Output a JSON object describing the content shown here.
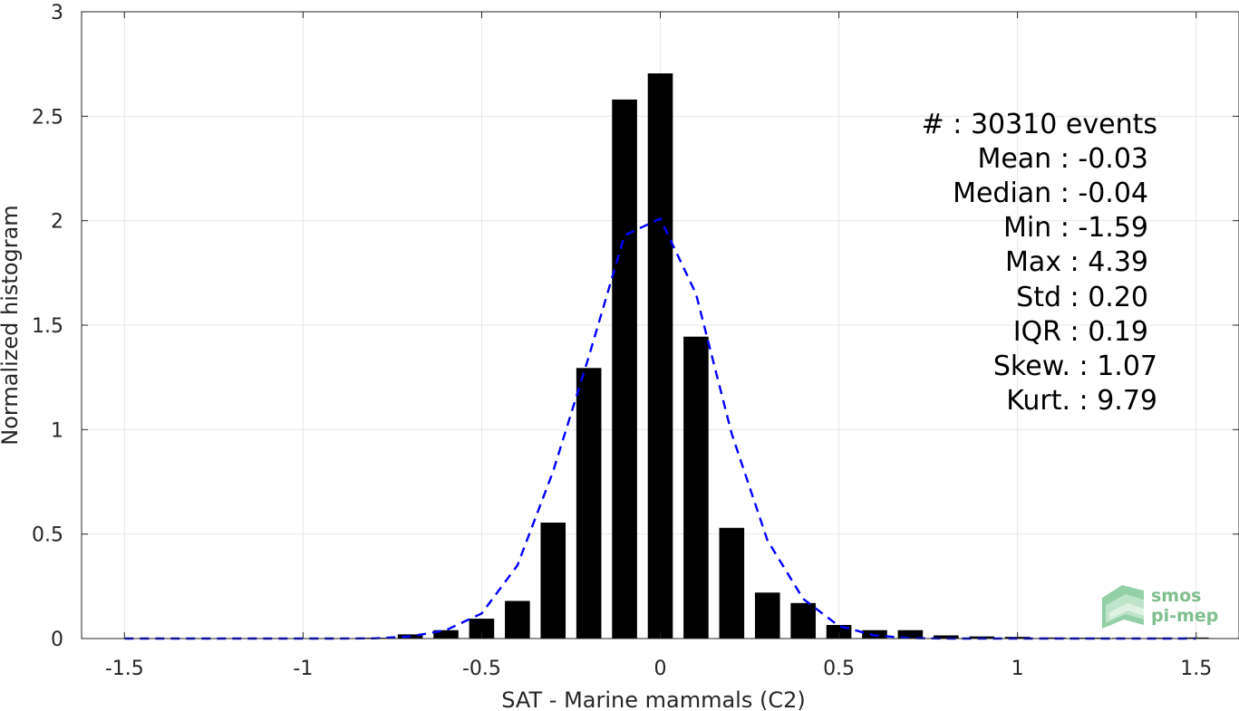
{
  "chart_data": {
    "type": "bar",
    "title": "",
    "xlabel": "SAT - Marine mammals (C2)",
    "ylabel": "Normalized histogram",
    "xlim": [
      -1.62,
      1.62
    ],
    "ylim": [
      0,
      3
    ],
    "grid": true,
    "xticks": [
      -1.5,
      -1,
      -0.5,
      0,
      0.5,
      1,
      1.5
    ],
    "xtick_labels": [
      "-1.5",
      "-1",
      "-0.5",
      "0",
      "0.5",
      "1",
      "1.5"
    ],
    "yticks": [
      0,
      0.5,
      1,
      1.5,
      2,
      2.5,
      3
    ],
    "ytick_labels": [
      "0",
      "0.5",
      "1",
      "1.5",
      "2",
      "2.5",
      "3"
    ],
    "bar_width": 0.07,
    "bars": {
      "x": [
        -1.5,
        -1.4,
        -1.3,
        -1.2,
        -1.1,
        -1.0,
        -0.9,
        -0.8,
        -0.7,
        -0.6,
        -0.5,
        -0.4,
        -0.3,
        -0.2,
        -0.1,
        0.0,
        0.1,
        0.2,
        0.3,
        0.4,
        0.5,
        0.6,
        0.7,
        0.8,
        0.9,
        1.0,
        1.1,
        1.2,
        1.3,
        1.4,
        1.5
      ],
      "values": [
        0.001,
        0.001,
        0.001,
        0.001,
        0.001,
        0.001,
        0.002,
        0.004,
        0.02,
        0.04,
        0.095,
        0.18,
        0.555,
        1.295,
        2.58,
        2.705,
        1.445,
        0.53,
        0.22,
        0.17,
        0.065,
        0.04,
        0.04,
        0.015,
        0.01,
        0.008,
        0.005,
        0.004,
        0.003,
        0.004,
        0.005
      ]
    },
    "fit_curve": {
      "style": "dashed",
      "color": "#0000ff",
      "x": [
        -1.5,
        -1.4,
        -1.3,
        -1.2,
        -1.1,
        -1.0,
        -0.9,
        -0.8,
        -0.7,
        -0.6,
        -0.5,
        -0.4,
        -0.3,
        -0.2,
        -0.1,
        0.0,
        0.1,
        0.2,
        0.3,
        0.4,
        0.5,
        0.6,
        0.7,
        0.8,
        0.9,
        1.0,
        1.1,
        1.2,
        1.3,
        1.4,
        1.5
      ],
      "values": [
        0.0,
        0.0,
        0.0,
        0.0,
        0.0,
        0.0,
        0.0,
        0.001,
        0.01,
        0.04,
        0.12,
        0.35,
        0.8,
        1.35,
        1.93,
        2.01,
        1.65,
        0.98,
        0.47,
        0.19,
        0.06,
        0.015,
        0.002,
        0.0,
        0.0,
        0.0,
        0.0,
        0.0,
        0.0,
        0.0,
        0.0
      ]
    },
    "stats": [
      {
        "label": "#  : 30310 events"
      },
      {
        "label": "Mean : -0.03"
      },
      {
        "label": "Median : -0.04"
      },
      {
        "label": "Min : -1.59"
      },
      {
        "label": "Max : 4.39"
      },
      {
        "label": "Std : 0.20"
      },
      {
        "label": "IQR : 0.19"
      },
      {
        "label": "Skew. : 1.07"
      },
      {
        "label": "Kurt. : 9.79"
      }
    ]
  },
  "logo": {
    "line1": "smos",
    "line2": "pi-mep",
    "color": "#7fbf8f"
  },
  "colors": {
    "bar": "#000000",
    "grid": "#e6e6e6",
    "axis": "#262626"
  }
}
